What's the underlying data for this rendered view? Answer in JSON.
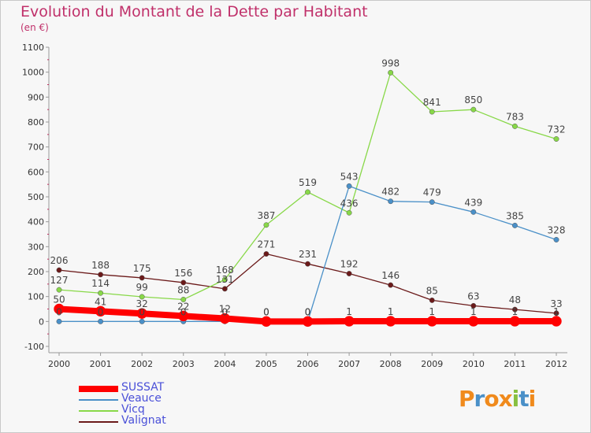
{
  "title": "Evolution du Montant de la Dette par Habitant",
  "subtitle": "(en €)",
  "logo_text": "Proxiti",
  "chart_data": {
    "type": "line",
    "x": [
      "2000",
      "2001",
      "2002",
      "2003",
      "2004",
      "2005",
      "2006",
      "2007",
      "2008",
      "2009",
      "2010",
      "2011",
      "2012"
    ],
    "ylim": [
      -100,
      1100
    ],
    "yticks": [
      -100,
      0,
      100,
      200,
      300,
      400,
      500,
      600,
      700,
      800,
      900,
      1000,
      1100
    ],
    "grid": false,
    "legend_position": "bottom-left",
    "series": [
      {
        "name": "Valignat",
        "color": "#6b1a1a",
        "values": [
          206,
          188,
          175,
          156,
          131,
          271,
          231,
          192,
          146,
          85,
          63,
          48,
          33
        ],
        "labels": [
          "206",
          "188",
          "175",
          "156",
          "131",
          "271",
          "231",
          "192",
          "146",
          "85",
          "63",
          "48",
          "33"
        ]
      },
      {
        "name": "Vicq",
        "color": "#88d848",
        "values": [
          127,
          114,
          99,
          88,
          168,
          387,
          519,
          436,
          998,
          841,
          850,
          783,
          732
        ],
        "labels": [
          "127",
          "114",
          "99",
          "88",
          "168",
          "387",
          "519",
          "436",
          "998",
          "841",
          "850",
          "783",
          "732"
        ]
      },
      {
        "name": "Veauce",
        "color": "#4a90c8",
        "values": [
          0,
          0,
          0,
          0,
          0,
          0,
          0,
          543,
          482,
          479,
          439,
          385,
          328
        ],
        "labels": [
          "0",
          "0",
          "0",
          "0",
          "0",
          "0",
          "0",
          "543",
          "482",
          "479",
          "439",
          "385",
          "328"
        ]
      },
      {
        "name": "SUSSAT",
        "color": "#ff0000",
        "values": [
          50,
          41,
          32,
          22,
          12,
          0,
          0,
          1,
          1,
          1,
          1,
          1,
          1
        ],
        "labels": [
          "50",
          "41",
          "32",
          "22",
          "12",
          "0",
          "0",
          "1",
          "1",
          "1",
          "1",
          "1",
          "1"
        ]
      }
    ],
    "legend_order": [
      "SUSSAT",
      "Veauce",
      "Vicq",
      "Valignat"
    ]
  }
}
